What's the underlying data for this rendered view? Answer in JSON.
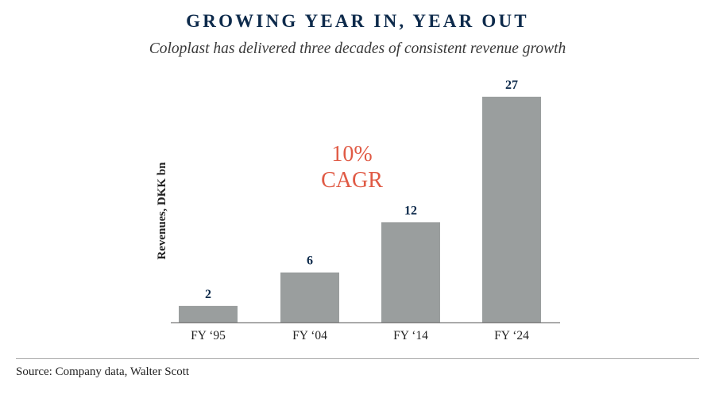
{
  "title": "GROWING YEAR IN, YEAR OUT",
  "subtitle": "Coloplast has delivered three decades of consistent revenue growth",
  "source": "Source: Company data, Walter Scott",
  "colors": {
    "bar": "#9a9e9e",
    "title": "#0d2a4b",
    "value_label": "#0d2a4b",
    "annotation": "#e05a45",
    "axis": "#555555"
  },
  "chart_data": {
    "type": "bar",
    "title": "GROWING YEAR IN, YEAR OUT",
    "subtitle": "Coloplast has delivered three decades of consistent revenue growth",
    "xlabel": "",
    "ylabel": "Revenues, DKK bn",
    "categories": [
      "FY ‘95",
      "FY ‘04",
      "FY ‘14",
      "FY ‘24"
    ],
    "values": [
      2,
      6,
      12,
      27
    ],
    "data_labels": [
      "2",
      "6",
      "12",
      "27"
    ],
    "ylim": [
      0,
      27
    ],
    "grid": false,
    "legend": "none",
    "annotations": [
      {
        "lines": [
          "10%",
          "CAGR"
        ]
      }
    ]
  }
}
